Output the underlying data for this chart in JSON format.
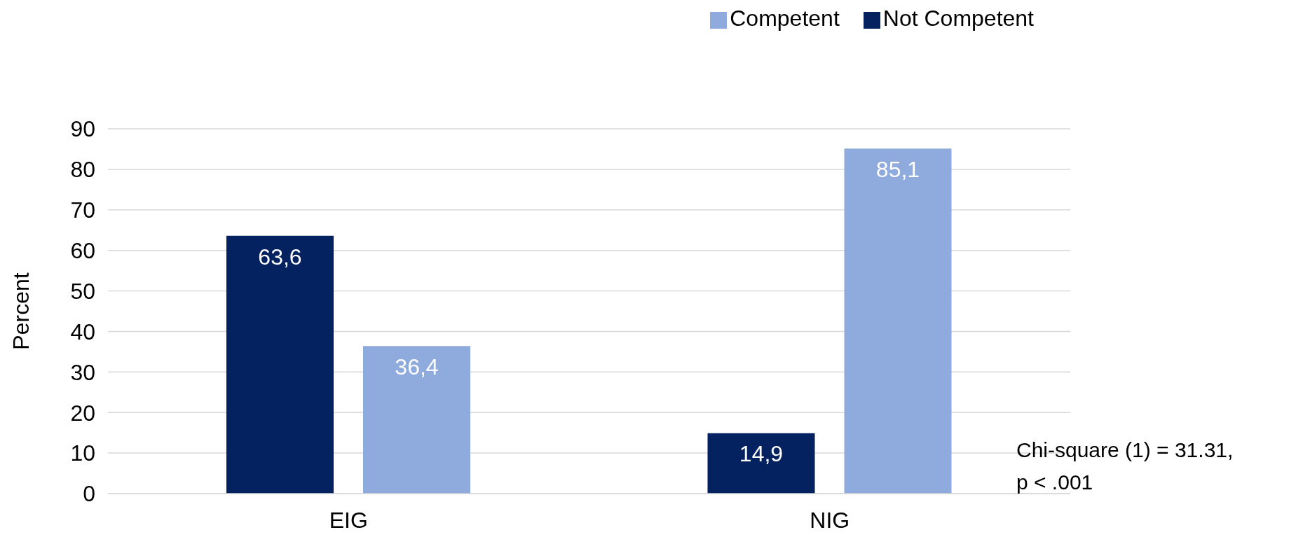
{
  "chart_data": {
    "type": "bar",
    "ylabel": "Percent",
    "categories": [
      "EIG",
      "NIG"
    ],
    "series": [
      {
        "name": "Not Competent",
        "color": "#042160",
        "values": [
          63.6,
          14.9
        ],
        "value_labels": [
          "63,6",
          "14,9"
        ]
      },
      {
        "name": "Competent",
        "color": "#8faadc",
        "values": [
          36.4,
          85.1
        ],
        "value_labels": [
          "36,4",
          "85,1"
        ]
      }
    ],
    "ylim": [
      0,
      90
    ],
    "yticks": [
      0,
      10,
      20,
      30,
      40,
      50,
      60,
      70,
      80,
      90
    ],
    "grid": "y",
    "legend": "top right",
    "annotations": [
      "Chi-square (1) = 31.31,\np < .001"
    ]
  }
}
